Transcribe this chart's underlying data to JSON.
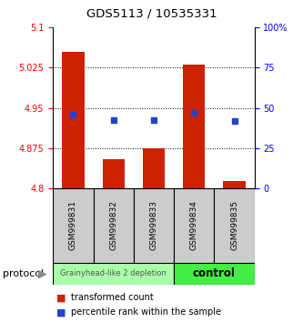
{
  "title": "GDS5113 / 10535331",
  "samples": [
    "GSM999831",
    "GSM999832",
    "GSM999833",
    "GSM999834",
    "GSM999835"
  ],
  "bar_bottoms": [
    4.8,
    4.8,
    4.8,
    4.8,
    4.8
  ],
  "bar_tops": [
    5.055,
    4.855,
    4.874,
    5.03,
    4.813
  ],
  "blue_values": [
    4.938,
    4.928,
    4.928,
    4.94,
    4.926
  ],
  "ylim": [
    4.8,
    5.1
  ],
  "yticks_left": [
    4.8,
    4.875,
    4.95,
    5.025,
    5.1
  ],
  "yticks_right": [
    0,
    25,
    50,
    75,
    100
  ],
  "ytick_labels_left": [
    "4.8",
    "4.875",
    "4.95",
    "5.025",
    "5.1"
  ],
  "ytick_labels_right": [
    "0",
    "25",
    "50",
    "75",
    "100%"
  ],
  "bar_color": "#cc2200",
  "blue_color": "#2244cc",
  "group1_label": "Grainyhead-like 2 depletion",
  "group2_label": "control",
  "group1_color_labels": "#cccccc",
  "group1_color_proto": "#aaffaa",
  "group2_color_labels": "#cccccc",
  "group2_color_proto": "#44ee44",
  "group1_samples": [
    0,
    1,
    2
  ],
  "group2_samples": [
    3,
    4
  ],
  "protocol_label": "protocol",
  "left_tick_color": "red",
  "right_tick_color": "blue",
  "grid_color": "#000000",
  "bar_width": 0.55,
  "legend_red_label": "transformed count",
  "legend_blue_label": "percentile rank within the sample"
}
